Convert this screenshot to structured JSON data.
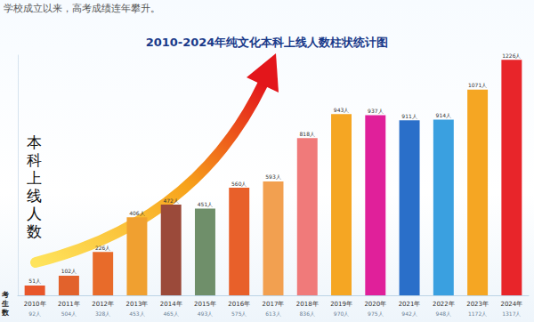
{
  "header": "学校成立以来，高考成绩连年攀升。",
  "chart_data": {
    "type": "bar",
    "title": "2010-2024年纯文化本科上线人数柱状统计图",
    "y_label": "本科上线人数",
    "categories": [
      "2010年",
      "2011年",
      "2012年",
      "2013年",
      "2014年",
      "2015年",
      "2016年",
      "2017年",
      "2018年",
      "2019年",
      "2020年",
      "2021年",
      "2022年",
      "2023年",
      "2024年"
    ],
    "values": [
      51,
      102,
      226,
      406,
      472,
      451,
      560,
      593,
      818,
      943,
      937,
      911,
      914,
      1071,
      1226
    ],
    "value_labels": [
      "51人",
      "102人",
      "226人",
      "406人",
      "472人",
      "451人",
      "560人",
      "593人",
      "818人",
      "943人",
      "937人",
      "911人",
      "914人",
      "1071人",
      "1226人"
    ],
    "colors": [
      "#e8562a",
      "#e2622c",
      "#e86b2a",
      "#f0a030",
      "#9b4a3a",
      "#6f8f6a",
      "#e8602a",
      "#f2a050",
      "#f07a7a",
      "#f5a623",
      "#e0209a",
      "#2a6fc9",
      "#3aa0e0",
      "#f5a623",
      "#e8252a"
    ],
    "exam_takers": {
      "label": "考生数",
      "values": [
        92,
        504,
        328,
        453,
        465,
        493,
        575,
        613,
        836,
        970,
        975,
        942,
        948,
        1172,
        1317
      ],
      "value_labels": [
        "92人",
        "504人",
        "328人",
        "453人",
        "465人",
        "493人",
        "575人",
        "613人",
        "836人",
        "970人",
        "975人",
        "942人",
        "948人",
        "1172人",
        "1317人"
      ]
    },
    "ylim": [
      0,
      1250
    ],
    "data_labels": true,
    "tick_labels": "x",
    "grid": false
  }
}
